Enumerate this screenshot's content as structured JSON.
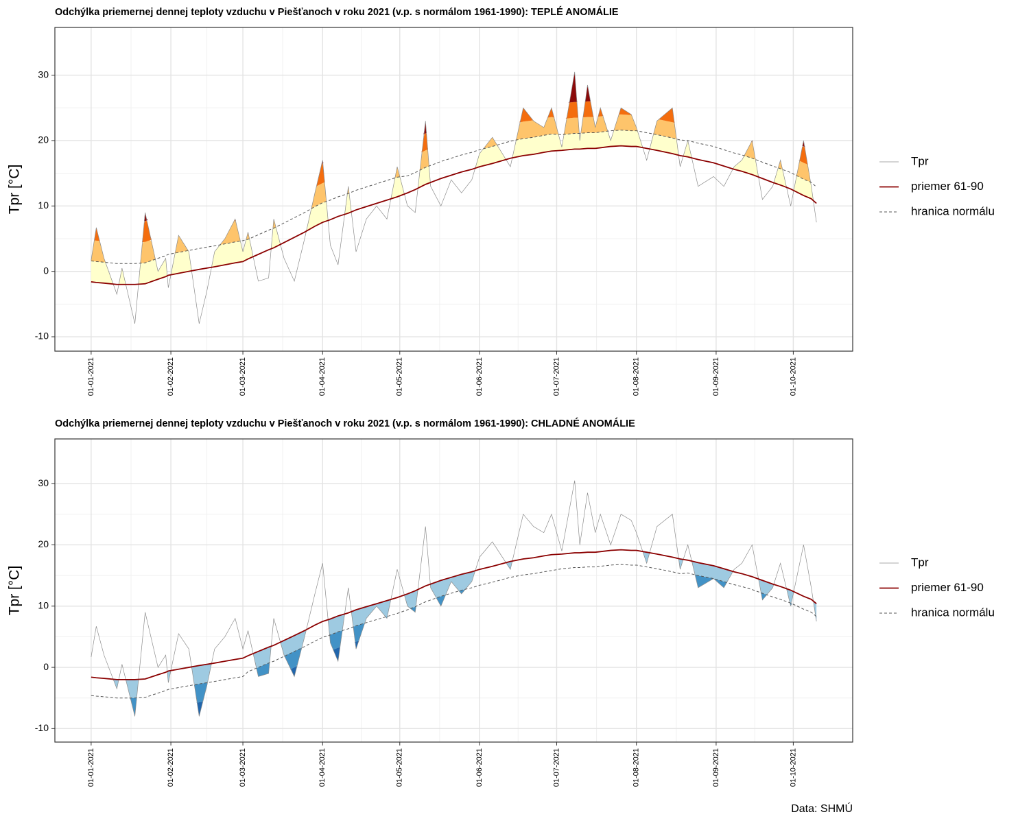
{
  "source": "Data: SHMÚ",
  "chart_data": [
    {
      "type": "line",
      "title": "Odchýlka priemernej dennej teploty vzduchu v Piešťanoch v roku 2021 (v.p. s normálom 1961-1990): TEPLÉ ANOMÁLIE",
      "y_label": "Tpr [°C]",
      "legend": "right",
      "grid": true,
      "anomaly": "warm",
      "anomaly_colors": [
        "#ffffcc",
        "#fec46b",
        "#f46d0e",
        "#8b0a0a"
      ],
      "ylim": [
        -12.2,
        37.3
      ],
      "yticks": [
        -10,
        0,
        10,
        20,
        30
      ],
      "xticks": [
        "01-01-2021",
        "01-02-2021",
        "01-03-2021",
        "01-04-2021",
        "01-05-2021",
        "01-06-2021",
        "01-07-2021",
        "01-08-2021",
        "01-09-2021",
        "01-10-2021"
      ],
      "x": [
        "01-01-2021",
        "03-01-2021",
        "06-01-2021",
        "11-01-2021",
        "13-01-2021",
        "18-01-2021",
        "22-01-2021",
        "27-01-2021",
        "30-01-2021",
        "31-01-2021",
        "04-02-2021",
        "08-02-2021",
        "12-02-2021",
        "15-02-2021",
        "18-02-2021",
        "22-02-2021",
        "26-02-2021",
        "01-03-2021",
        "03-03-2021",
        "07-03-2021",
        "11-03-2021",
        "13-03-2021",
        "17-03-2021",
        "21-03-2021",
        "25-03-2021",
        "29-03-2021",
        "01-04-2021",
        "04-04-2021",
        "07-04-2021",
        "11-04-2021",
        "14-04-2021",
        "18-04-2021",
        "22-04-2021",
        "26-04-2021",
        "30-04-2021",
        "04-05-2021",
        "07-05-2021",
        "11-05-2021",
        "13-05-2021",
        "17-05-2021",
        "21-05-2021",
        "25-05-2021",
        "29-05-2021",
        "01-06-2021",
        "06-06-2021",
        "13-06-2021",
        "18-06-2021",
        "22-06-2021",
        "26-06-2021",
        "29-06-2021",
        "03-07-2021",
        "08-07-2021",
        "10-07-2021",
        "13-07-2021",
        "16-07-2021",
        "18-07-2021",
        "22-07-2021",
        "26-07-2021",
        "30-07-2021",
        "01-08-2021",
        "05-08-2021",
        "09-08-2021",
        "15-08-2021",
        "18-08-2021",
        "21-08-2021",
        "25-08-2021",
        "31-08-2021",
        "04-09-2021",
        "08-09-2021",
        "11-09-2021",
        "15-09-2021",
        "19-09-2021",
        "23-09-2021",
        "26-09-2021",
        "30-09-2021",
        "05-10-2021",
        "08-10-2021",
        "10-10-2021"
      ],
      "series": [
        {
          "name": "Tpr",
          "color": "#8c8c8c",
          "values": [
            1.7,
            6.7,
            2,
            -3.5,
            0.5,
            -8,
            9,
            0,
            2,
            -2.5,
            5.5,
            3,
            -8,
            -3,
            3,
            5,
            8,
            3,
            6,
            -1.5,
            -1,
            8,
            2,
            -1.5,
            5,
            12,
            17,
            4,
            1,
            13,
            3,
            8,
            10,
            8,
            16,
            10,
            9,
            23,
            13,
            10,
            14,
            12,
            14,
            18,
            20.5,
            16,
            25,
            23,
            22,
            25,
            19,
            30.5,
            20,
            28.5,
            22,
            25,
            20,
            25,
            24,
            22,
            17,
            23,
            25,
            16,
            20,
            13,
            14.5,
            13,
            16,
            17,
            20,
            11,
            13,
            17,
            10,
            20,
            13,
            7.5
          ]
        },
        {
          "name": "priemer 61-90",
          "color": "#8b0000",
          "values": [
            -1.6,
            -1.7,
            -1.8,
            -2,
            -2,
            -2,
            -1.9,
            -1.2,
            -0.8,
            -0.6,
            -0.3,
            0,
            0.3,
            0.5,
            0.7,
            1,
            1.3,
            1.5,
            1.9,
            2.6,
            3.3,
            3.6,
            4.4,
            5.2,
            6,
            6.9,
            7.5,
            7.9,
            8.4,
            8.9,
            9.4,
            9.9,
            10.4,
            10.9,
            11.4,
            12,
            12.5,
            13.3,
            13.6,
            14.2,
            14.7,
            15.2,
            15.6,
            16,
            16.5,
            17.3,
            17.7,
            17.9,
            18.2,
            18.4,
            18.5,
            18.7,
            18.7,
            18.8,
            18.8,
            18.9,
            19.1,
            19.2,
            19.1,
            19.1,
            18.8,
            18.5,
            18,
            17.7,
            17.5,
            17.1,
            16.6,
            16.1,
            15.6,
            15.3,
            14.8,
            14.2,
            13.6,
            13.2,
            12.6,
            11.6,
            11.1,
            10.4
          ]
        },
        {
          "name": "hranica normálu",
          "color": "#555555",
          "dash": true,
          "values": [
            1.6,
            1.5,
            1.4,
            1.2,
            1.2,
            1.2,
            1.3,
            2,
            2.4,
            2.6,
            2.9,
            3.2,
            3.5,
            3.7,
            3.9,
            4.2,
            4.5,
            4.7,
            4.9,
            5.6,
            6.3,
            6.6,
            7.4,
            8.2,
            9,
            9.9,
            10.5,
            10.9,
            11.4,
            11.9,
            12.4,
            12.9,
            13.4,
            13.9,
            14.4,
            14.6,
            15.1,
            15.9,
            16.2,
            16.8,
            17.3,
            17.8,
            18.2,
            18.6,
            19.1,
            19.9,
            20.3,
            20.5,
            20.8,
            21,
            20.9,
            21.1,
            21.1,
            21.2,
            21.2,
            21.3,
            21.5,
            21.6,
            21.5,
            21.5,
            21.2,
            20.9,
            20.4,
            20.1,
            20,
            19.6,
            19.1,
            18.6,
            18.1,
            17.8,
            17.3,
            16.7,
            16.1,
            15.7,
            15.1,
            14.1,
            13.6,
            12.9
          ]
        }
      ]
    },
    {
      "type": "line",
      "title": "Odchýlka priemernej dennej teploty vzduchu v Piešťanoch v roku 2021 (v.p. s normálom 1961-1990): CHLADNÉ ANOMÁLIE",
      "y_label": "Tpr [°C]",
      "legend": "right",
      "grid": true,
      "anomaly": "cold",
      "anomaly_colors": [
        "#9ecae1",
        "#4292c6",
        "#2166ac",
        "#08306b"
      ],
      "ylim": [
        -12.2,
        37.3
      ],
      "yticks": [
        -10,
        0,
        10,
        20,
        30
      ],
      "xticks": [
        "01-01-2021",
        "01-02-2021",
        "01-03-2021",
        "01-04-2021",
        "01-05-2021",
        "01-06-2021",
        "01-07-2021",
        "01-08-2021",
        "01-09-2021",
        "01-10-2021"
      ],
      "x": [
        "01-01-2021",
        "03-01-2021",
        "06-01-2021",
        "11-01-2021",
        "13-01-2021",
        "18-01-2021",
        "22-01-2021",
        "27-01-2021",
        "30-01-2021",
        "31-01-2021",
        "04-02-2021",
        "08-02-2021",
        "12-02-2021",
        "15-02-2021",
        "18-02-2021",
        "22-02-2021",
        "26-02-2021",
        "01-03-2021",
        "03-03-2021",
        "07-03-2021",
        "11-03-2021",
        "13-03-2021",
        "17-03-2021",
        "21-03-2021",
        "25-03-2021",
        "29-03-2021",
        "01-04-2021",
        "04-04-2021",
        "07-04-2021",
        "11-04-2021",
        "14-04-2021",
        "18-04-2021",
        "22-04-2021",
        "26-04-2021",
        "30-04-2021",
        "04-05-2021",
        "07-05-2021",
        "11-05-2021",
        "13-05-2021",
        "17-05-2021",
        "21-05-2021",
        "25-05-2021",
        "29-05-2021",
        "01-06-2021",
        "06-06-2021",
        "13-06-2021",
        "18-06-2021",
        "22-06-2021",
        "26-06-2021",
        "29-06-2021",
        "03-07-2021",
        "08-07-2021",
        "10-07-2021",
        "13-07-2021",
        "16-07-2021",
        "18-07-2021",
        "22-07-2021",
        "26-07-2021",
        "30-07-2021",
        "01-08-2021",
        "05-08-2021",
        "09-08-2021",
        "15-08-2021",
        "18-08-2021",
        "21-08-2021",
        "25-08-2021",
        "31-08-2021",
        "04-09-2021",
        "08-09-2021",
        "11-09-2021",
        "15-09-2021",
        "19-09-2021",
        "23-09-2021",
        "26-09-2021",
        "30-09-2021",
        "05-10-2021",
        "08-10-2021",
        "10-10-2021"
      ],
      "series": [
        {
          "name": "Tpr",
          "color": "#8c8c8c",
          "values": [
            1.7,
            6.7,
            2,
            -3.5,
            0.5,
            -8,
            9,
            0,
            2,
            -2.5,
            5.5,
            3,
            -8,
            -3,
            3,
            5,
            8,
            3,
            6,
            -1.5,
            -1,
            8,
            2,
            -1.5,
            5,
            12,
            17,
            4,
            1,
            13,
            3,
            8,
            10,
            8,
            16,
            10,
            9,
            23,
            13,
            10,
            14,
            12,
            14,
            18,
            20.5,
            16,
            25,
            23,
            22,
            25,
            19,
            30.5,
            20,
            28.5,
            22,
            25,
            20,
            25,
            24,
            22,
            17,
            23,
            25,
            16,
            20,
            13,
            14.5,
            13,
            16,
            17,
            20,
            11,
            13,
            17,
            10,
            20,
            13,
            7.5
          ]
        },
        {
          "name": "priemer 61-90",
          "color": "#8b0000",
          "values": [
            -1.6,
            -1.7,
            -1.8,
            -2,
            -2,
            -2,
            -1.9,
            -1.2,
            -0.8,
            -0.6,
            -0.3,
            0,
            0.3,
            0.5,
            0.7,
            1,
            1.3,
            1.5,
            1.9,
            2.6,
            3.3,
            3.6,
            4.4,
            5.2,
            6,
            6.9,
            7.5,
            7.9,
            8.4,
            8.9,
            9.4,
            9.9,
            10.4,
            10.9,
            11.4,
            12,
            12.5,
            13.3,
            13.6,
            14.2,
            14.7,
            15.2,
            15.6,
            16,
            16.5,
            17.3,
            17.7,
            17.9,
            18.2,
            18.4,
            18.5,
            18.7,
            18.7,
            18.8,
            18.8,
            18.9,
            19.1,
            19.2,
            19.1,
            19.1,
            18.8,
            18.5,
            18,
            17.7,
            17.5,
            17.1,
            16.6,
            16.1,
            15.6,
            15.3,
            14.8,
            14.2,
            13.6,
            13.2,
            12.6,
            11.6,
            11.1,
            10.4
          ]
        },
        {
          "name": "hranica normálu",
          "color": "#555555",
          "dash": true,
          "values": [
            -4.6,
            -4.7,
            -4.8,
            -5,
            -5,
            -5,
            -4.9,
            -4.2,
            -3.8,
            -3.6,
            -3.3,
            -3,
            -2.7,
            -2.5,
            -2.3,
            -2,
            -1.7,
            -1.5,
            -0.7,
            0,
            0.7,
            1,
            1.8,
            2.6,
            3.4,
            4.3,
            4.9,
            5.3,
            5.8,
            6.3,
            6.8,
            7.3,
            7.8,
            8.3,
            8.8,
            9.4,
            9.9,
            10.7,
            11,
            11.6,
            12.1,
            12.6,
            13,
            13.4,
            13.9,
            14.7,
            15.1,
            15.3,
            15.6,
            15.8,
            16.1,
            16.3,
            16.3,
            16.4,
            16.4,
            16.5,
            16.7,
            16.8,
            16.7,
            16.7,
            16.4,
            16.1,
            15.6,
            15.3,
            15.4,
            15,
            14.5,
            14,
            13.5,
            13.2,
            12.7,
            12.1,
            11.5,
            11.1,
            10.5,
            9.5,
            9,
            8.3
          ]
        }
      ]
    }
  ]
}
